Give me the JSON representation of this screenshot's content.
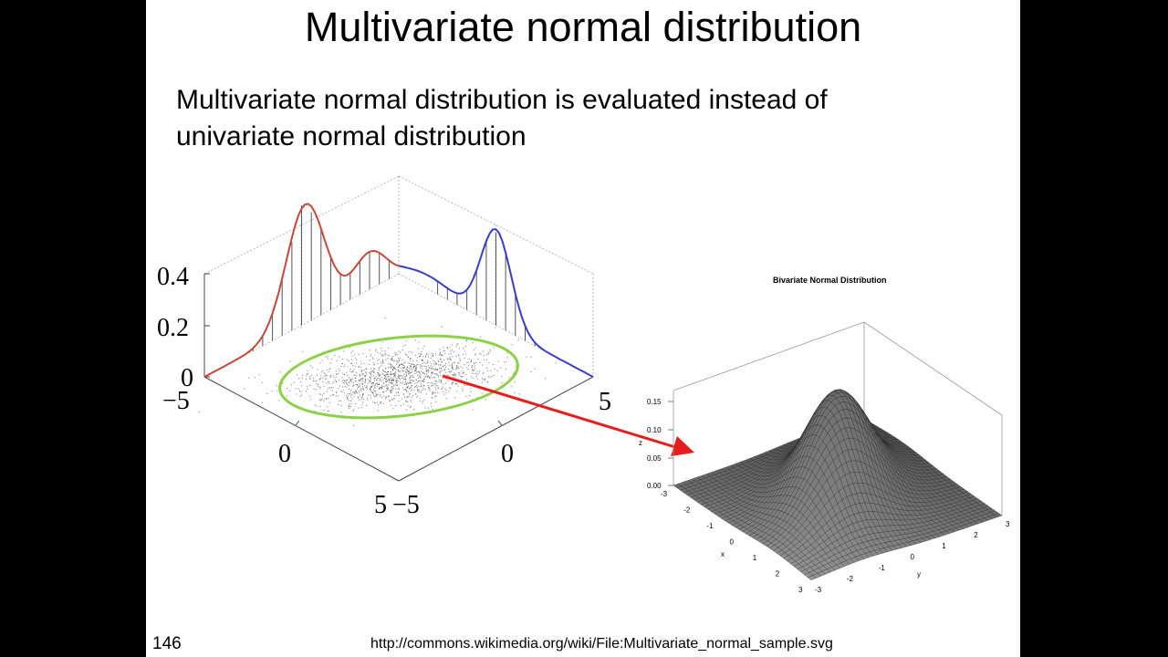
{
  "slide": {
    "title": "Multivariate normal distribution",
    "body_lines": [
      "Multivariate normal distribution is evaluated instead of",
      "univariate normal distribution"
    ],
    "slide_number": "146",
    "source_url": "http://commons.wikimedia.org/wiki/File:Multivariate_normal_sample.svg"
  },
  "colors": {
    "marginal_x": "#c8463a",
    "marginal_y": "#3c3cc8",
    "ellipse": "#8ed04a",
    "arrow": "#e81c1c",
    "surface": "#555555"
  },
  "left_plot": {
    "z_ticks": [
      "0.4",
      "0.2",
      "0"
    ],
    "x_ticks": [
      "−5",
      "0",
      "5"
    ],
    "y_ticks": [
      "−5",
      "0",
      "5"
    ]
  },
  "right_plot": {
    "title": "Bivariate Normal Distribution",
    "z_ticks": [
      "0.15",
      "0.10",
      "0.05",
      "0.00"
    ],
    "z_label": "z",
    "x_ticks": [
      "-3",
      "-2",
      "-1",
      "0",
      "1",
      "2",
      "3"
    ],
    "x_label": "x",
    "y_ticks": [
      "-3",
      "-2",
      "-1",
      "0",
      "1",
      "2",
      "3"
    ],
    "y_label": "y"
  }
}
